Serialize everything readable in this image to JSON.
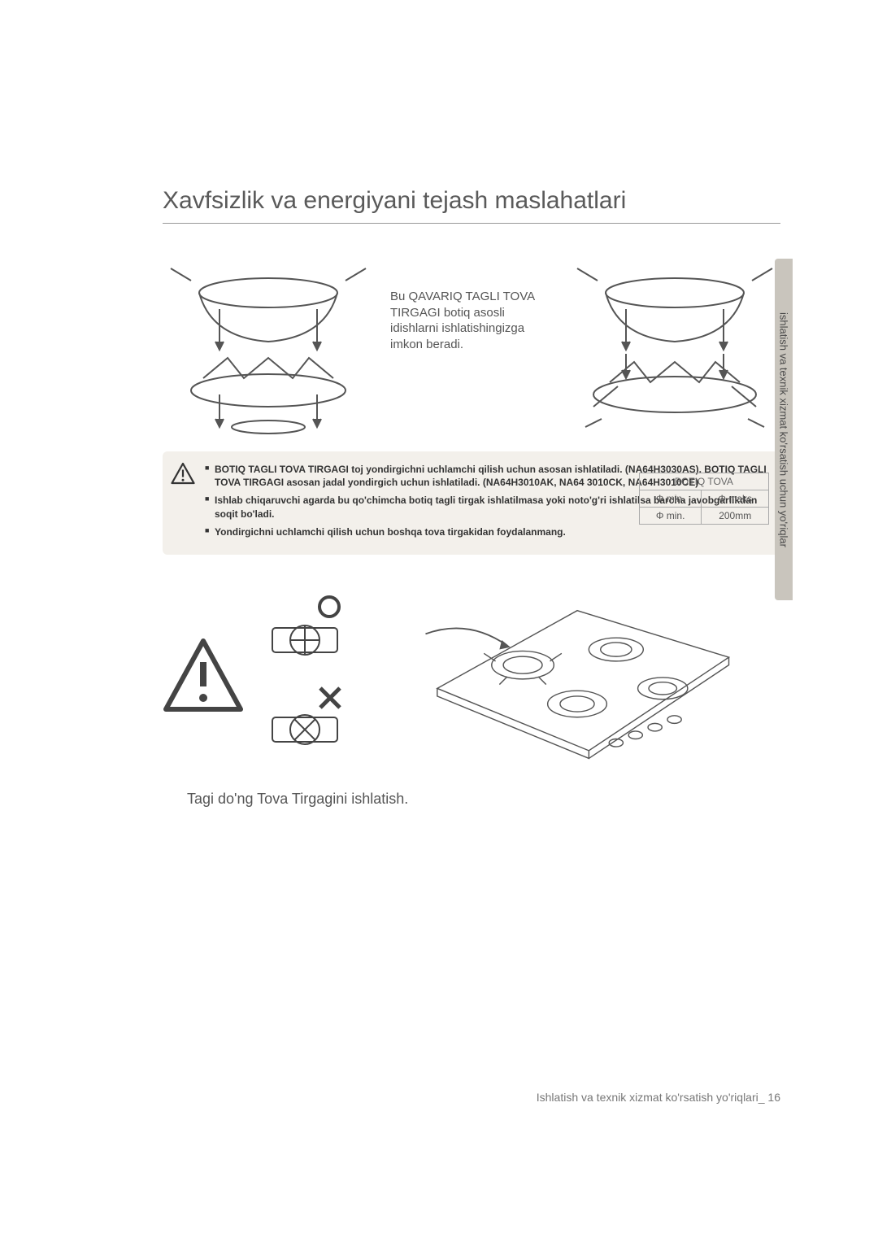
{
  "title": "Xavfsizlik va energiyani tejash maslahatlari",
  "intro_text": "Bu QAVARIQ TAGLI TOVA TIRGAGI botiq asosli idishlarni ishlatishingizga imkon beradi.",
  "warning_items": [
    {
      "text_html": "<b>BOTIQ TAGLI TOVA TIRGAGI toj yondirgichni uchlamchi qilish uchun asosan ishlatiladi. (NA64H3030AS). BOTIQ TAGLI TOVA TIRGAGI asosan jadal yondirgich uchun ishlatiladi.  (NA64H3010AK, NA64 3010CK, NA64H3010CE)</b>"
    },
    {
      "text_html": "<b>Ishlab chiqaruvchi agarda bu qo'chimcha botiq tagli tirgak ishlatilmasa yoki noto'g'ri ishlatilsa barcha javobgarlikdan soqit bo'ladi.</b>"
    },
    {
      "text_html": "<b>Yondirgichni uchlamchi qilish uchun boshqa tova tirgakidan foydalanmang.</b>"
    }
  ],
  "table": {
    "header": "BOTIQ TOVA",
    "row1": {
      "c1": "Φ min.",
      "c2": "Φ maks"
    },
    "row2": {
      "c1": "Φ min.",
      "c2": "200mm"
    }
  },
  "caption": "Tagi do'ng Tova Tirgagini ishlatish.",
  "footer": "Ishlatish va texnik xizmat ko'rsatish yo'riqlari_ 16",
  "side_tab": "ishlatish va texnik xizmat ko'rsatish uchun yo'riqlar",
  "colors": {
    "box_bg": "#f3f0eb",
    "tab_bg": "#c9c5bd",
    "stroke": "#666666"
  }
}
